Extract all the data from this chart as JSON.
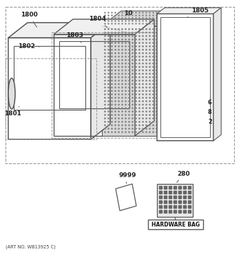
{
  "art_no": "(ART NO. WB13925 C)",
  "hardware_bag_label": "HARDWARE BAG",
  "bg_color": "#ffffff",
  "lc": "#555555",
  "dc": "#999999",
  "fig_width": 3.5,
  "fig_height": 3.73,
  "dpi": 100
}
